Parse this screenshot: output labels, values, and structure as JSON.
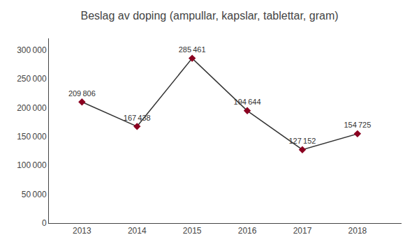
{
  "chart_data": {
    "type": "line",
    "title": "Beslag av doping (ampullar, kapslar, tablettar, gram)",
    "x": [
      2013,
      2014,
      2015,
      2016,
      2017,
      2018
    ],
    "series": [
      {
        "values": [
          209806,
          167438,
          285461,
          194644,
          127152,
          154725
        ],
        "value_labels": [
          "209 806",
          "167 438",
          "285 461",
          "194 644",
          "127 152",
          "154 725"
        ],
        "color": "#333333",
        "colors": [
          "#8b0020",
          "#8b0020",
          "#8b0020",
          "#8b0020",
          "#8b0020",
          "#8b0020"
        ],
        "marker": "diamond"
      }
    ],
    "data_labels": true,
    "xlim": [
      2012.4,
      2018.8
    ],
    "xticks": [
      2013,
      2014,
      2015,
      2016,
      2017,
      2018
    ],
    "ylim": [
      0,
      320000
    ],
    "yticks": [
      0,
      {
        "value": 50000,
        "label": "50 000"
      },
      {
        "value": 100000,
        "label": "100 000"
      },
      {
        "value": 150000,
        "label": "150 000"
      },
      {
        "value": 200000,
        "label": "200 000"
      },
      {
        "value": 250000,
        "label": "250 000"
      },
      {
        "value": 300000,
        "label": "300 000"
      }
    ],
    "grid": false
  }
}
